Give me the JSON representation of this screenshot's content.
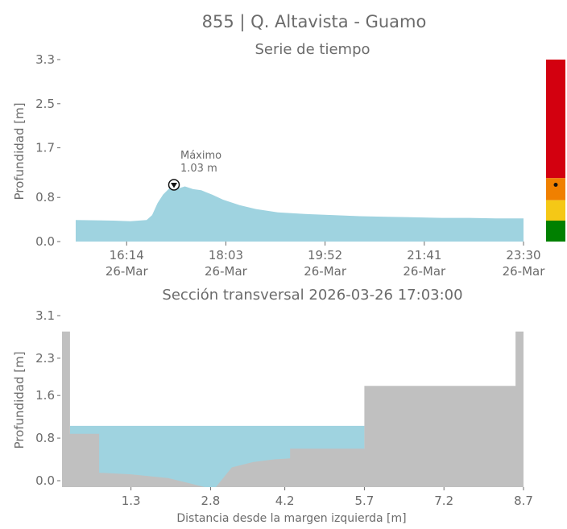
{
  "title": "855 | Q. Altavista - Guamo",
  "chart_data": [
    {
      "type": "area",
      "title": "Serie de tiempo",
      "ylabel": "Profundidad [m]",
      "yticks": [
        "0.0",
        "0.8",
        "1.7",
        "2.5",
        "3.3"
      ],
      "ylim": [
        0,
        3.3
      ],
      "xtick_labels": [
        {
          "time": "16:14",
          "date": "26-Mar"
        },
        {
          "time": "18:03",
          "date": "26-Mar"
        },
        {
          "time": "19:52",
          "date": "26-Mar"
        },
        {
          "time": "21:41",
          "date": "26-Mar"
        },
        {
          "time": "23:30",
          "date": "26-Mar"
        }
      ],
      "x_hours": [
        15.3,
        16.0,
        16.3,
        16.6,
        16.7,
        16.8,
        16.9,
        17.0,
        17.05,
        17.1,
        17.2,
        17.3,
        17.45,
        17.6,
        17.8,
        18.0,
        18.3,
        18.6,
        19.0,
        19.5,
        20.0,
        20.5,
        21.0,
        21.5,
        22.0,
        22.5,
        23.0,
        23.5
      ],
      "values": [
        0.39,
        0.38,
        0.37,
        0.39,
        0.48,
        0.7,
        0.85,
        0.95,
        1.0,
        1.03,
        0.97,
        1.0,
        0.95,
        0.93,
        0.85,
        0.76,
        0.66,
        0.59,
        0.53,
        0.5,
        0.48,
        0.46,
        0.45,
        0.44,
        0.43,
        0.43,
        0.42,
        0.42
      ],
      "annotation": {
        "label": "Máximo",
        "value": "1.03 m",
        "x_hours": 17.1,
        "y": 1.03
      },
      "color": "#9fd3e0",
      "alert_bar": [
        {
          "color": "#d3000f",
          "from": 1.15,
          "to": 3.3
        },
        {
          "color": "#f08000",
          "from": 0.75,
          "to": 1.15
        },
        {
          "color": "#f5c816",
          "from": 0.38,
          "to": 0.75
        },
        {
          "color": "#008000",
          "from": 0.0,
          "to": 0.38
        }
      ],
      "alert_marker_y": 1.03
    },
    {
      "type": "area",
      "title": "Sección transversal 2026-03-26 17:03:00",
      "ylabel": "Profundidad [m]",
      "xlabel": "Distancia desde la margen izquierda [m]",
      "yticks": [
        "0.0",
        "0.8",
        "1.6",
        "2.3",
        "3.1"
      ],
      "ylim": [
        0,
        3.1
      ],
      "xticks": [
        "1.3",
        "2.8",
        "4.2",
        "5.7",
        "7.2",
        "8.7"
      ],
      "xlim": [
        0,
        8.7
      ],
      "water_level": 1.03,
      "water_color": "#9fd3e0",
      "ground_color": "#c0c0c0",
      "ground_x": [
        0.0,
        0.0,
        0.15,
        0.15,
        0.7,
        0.7,
        1.3,
        2.0,
        2.7,
        2.9,
        3.2,
        3.6,
        4.0,
        4.3,
        4.3,
        5.7,
        5.7,
        8.55,
        8.55,
        8.7,
        8.7
      ],
      "ground_y": [
        0.0,
        2.8,
        2.8,
        0.88,
        0.88,
        0.15,
        0.12,
        0.05,
        0.0,
        0.0,
        0.25,
        0.35,
        0.4,
        0.42,
        0.6,
        0.6,
        1.78,
        1.78,
        2.8,
        2.8,
        0.0
      ]
    }
  ]
}
